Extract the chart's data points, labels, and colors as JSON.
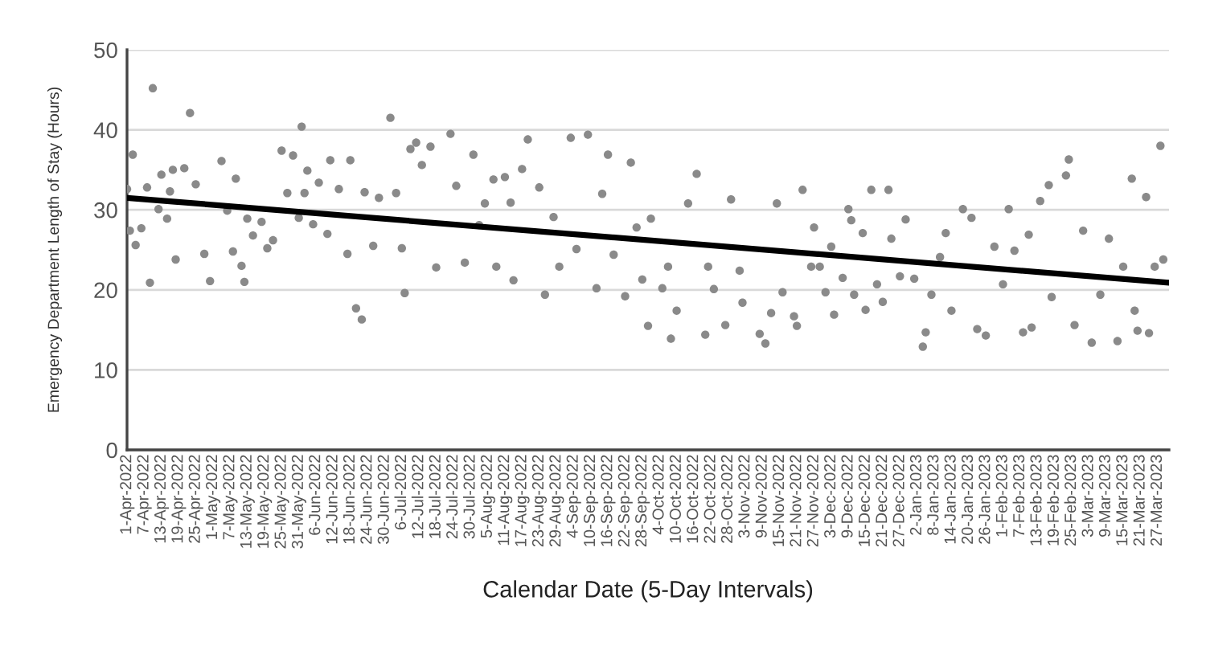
{
  "chart_data": {
    "type": "scatter",
    "xlabel": "Calendar Date (5-Day Intervals)",
    "ylabel": "Emergency Department Length of Stay (Hours)",
    "xlim": [
      "2022-04-01",
      "2023-03-31"
    ],
    "ylim": [
      0,
      50
    ],
    "yticks": [
      0,
      10,
      20,
      30,
      40,
      50
    ],
    "xticks": [
      {
        "value": "2022-04-01",
        "label": "1-Apr-2022"
      },
      {
        "value": "2022-04-07",
        "label": "7-Apr-2022"
      },
      {
        "value": "2022-04-13",
        "label": "13-Apr-2022"
      },
      {
        "value": "2022-04-19",
        "label": "19-Apr-2022"
      },
      {
        "value": "2022-04-25",
        "label": "25-Apr-2022"
      },
      {
        "value": "2022-05-01",
        "label": "1-May-2022"
      },
      {
        "value": "2022-05-07",
        "label": "7-May-2022"
      },
      {
        "value": "2022-05-13",
        "label": "13-May-2022"
      },
      {
        "value": "2022-05-19",
        "label": "19-May-2022"
      },
      {
        "value": "2022-05-25",
        "label": "25-May-2022"
      },
      {
        "value": "2022-05-31",
        "label": "31-May-2022"
      },
      {
        "value": "2022-06-06",
        "label": "6-Jun-2022"
      },
      {
        "value": "2022-06-12",
        "label": "12-Jun-2022"
      },
      {
        "value": "2022-06-18",
        "label": "18-Jun-2022"
      },
      {
        "value": "2022-06-24",
        "label": "24-Jun-2022"
      },
      {
        "value": "2022-06-30",
        "label": "30-Jun-2022"
      },
      {
        "value": "2022-07-06",
        "label": "6-Jul-2022"
      },
      {
        "value": "2022-07-12",
        "label": "12-Jul-2022"
      },
      {
        "value": "2022-07-18",
        "label": "18-Jul-2022"
      },
      {
        "value": "2022-07-24",
        "label": "24-Jul-2022"
      },
      {
        "value": "2022-07-30",
        "label": "30-Jul-2022"
      },
      {
        "value": "2022-08-05",
        "label": "5-Aug-2022"
      },
      {
        "value": "2022-08-11",
        "label": "11-Aug-2022"
      },
      {
        "value": "2022-08-17",
        "label": "17-Aug-2022"
      },
      {
        "value": "2022-08-23",
        "label": "23-Aug-2022"
      },
      {
        "value": "2022-08-29",
        "label": "29-Aug-2022"
      },
      {
        "value": "2022-09-04",
        "label": "4-Sep-2022"
      },
      {
        "value": "2022-09-10",
        "label": "10-Sep-2022"
      },
      {
        "value": "2022-09-16",
        "label": "16-Sep-2022"
      },
      {
        "value": "2022-09-22",
        "label": "22-Sep-2022"
      },
      {
        "value": "2022-09-28",
        "label": "28-Sep-2022"
      },
      {
        "value": "2022-10-04",
        "label": "4-Oct-2022"
      },
      {
        "value": "2022-10-10",
        "label": "10-Oct-2022"
      },
      {
        "value": "2022-10-16",
        "label": "16-Oct-2022"
      },
      {
        "value": "2022-10-22",
        "label": "22-Oct-2022"
      },
      {
        "value": "2022-10-28",
        "label": "28-Oct-2022"
      },
      {
        "value": "2022-11-03",
        "label": "3-Nov-2022"
      },
      {
        "value": "2022-11-09",
        "label": "9-Nov-2022"
      },
      {
        "value": "2022-11-15",
        "label": "15-Nov-2022"
      },
      {
        "value": "2022-11-21",
        "label": "21-Nov-2022"
      },
      {
        "value": "2022-11-27",
        "label": "27-Nov-2022"
      },
      {
        "value": "2022-12-03",
        "label": "3-Dec-2022"
      },
      {
        "value": "2022-12-09",
        "label": "9-Dec-2022"
      },
      {
        "value": "2022-12-15",
        "label": "15-Dec-2022"
      },
      {
        "value": "2022-12-21",
        "label": "21-Dec-2022"
      },
      {
        "value": "2022-12-27",
        "label": "27-Dec-2022"
      },
      {
        "value": "2023-01-02",
        "label": "2-Jan-2023"
      },
      {
        "value": "2023-01-08",
        "label": "8-Jan-2023"
      },
      {
        "value": "2023-01-14",
        "label": "14-Jan-2023"
      },
      {
        "value": "2023-01-20",
        "label": "20-Jan-2023"
      },
      {
        "value": "2023-01-26",
        "label": "26-Jan-2023"
      },
      {
        "value": "2023-02-01",
        "label": "1-Feb-2023"
      },
      {
        "value": "2023-02-07",
        "label": "7-Feb-2023"
      },
      {
        "value": "2023-02-13",
        "label": "13-Feb-2023"
      },
      {
        "value": "2023-02-19",
        "label": "19-Feb-2023"
      },
      {
        "value": "2023-02-25",
        "label": "25-Feb-2023"
      },
      {
        "value": "2023-03-03",
        "label": "3-Mar-2023"
      },
      {
        "value": "2023-03-09",
        "label": "9-Mar-2023"
      },
      {
        "value": "2023-03-15",
        "label": "15-Mar-2023"
      },
      {
        "value": "2023-03-21",
        "label": "21-Mar-2023"
      },
      {
        "value": "2023-03-27",
        "label": "27-Mar-2023"
      }
    ],
    "grid": "y",
    "series": [
      {
        "marker": "circle",
        "color": "#8a8a8a",
        "x": [
          "2022-04-01",
          "2022-04-02",
          "2022-04-03",
          "2022-04-04",
          "2022-04-06",
          "2022-04-08",
          "2022-04-09",
          "2022-04-10",
          "2022-04-12",
          "2022-04-13",
          "2022-04-15",
          "2022-04-16",
          "2022-04-17",
          "2022-04-18",
          "2022-04-21",
          "2022-04-23",
          "2022-04-25",
          "2022-04-28",
          "2022-04-30",
          "2022-05-04",
          "2022-05-06",
          "2022-05-08",
          "2022-05-09",
          "2022-05-11",
          "2022-05-12",
          "2022-05-13",
          "2022-05-15",
          "2022-05-18",
          "2022-05-20",
          "2022-05-22",
          "2022-05-25",
          "2022-05-27",
          "2022-05-29",
          "2022-05-31",
          "2022-06-01",
          "2022-06-02",
          "2022-06-03",
          "2022-06-05",
          "2022-06-07",
          "2022-06-10",
          "2022-06-11",
          "2022-06-14",
          "2022-06-17",
          "2022-06-18",
          "2022-06-20",
          "2022-06-22",
          "2022-06-23",
          "2022-06-26",
          "2022-06-28",
          "2022-07-02",
          "2022-07-04",
          "2022-07-06",
          "2022-07-07",
          "2022-07-09",
          "2022-07-11",
          "2022-07-13",
          "2022-07-16",
          "2022-07-18",
          "2022-07-23",
          "2022-07-25",
          "2022-07-28",
          "2022-07-31",
          "2022-08-02",
          "2022-08-04",
          "2022-08-07",
          "2022-08-08",
          "2022-08-11",
          "2022-08-13",
          "2022-08-14",
          "2022-08-17",
          "2022-08-19",
          "2022-08-23",
          "2022-08-25",
          "2022-08-28",
          "2022-08-30",
          "2022-09-03",
          "2022-09-05",
          "2022-09-09",
          "2022-09-12",
          "2022-09-14",
          "2022-09-16",
          "2022-09-18",
          "2022-09-22",
          "2022-09-24",
          "2022-09-26",
          "2022-09-28",
          "2022-09-30",
          "2022-10-01",
          "2022-10-05",
          "2022-10-07",
          "2022-10-08",
          "2022-10-10",
          "2022-10-14",
          "2022-10-17",
          "2022-10-20",
          "2022-10-21",
          "2022-10-23",
          "2022-10-27",
          "2022-10-29",
          "2022-11-01",
          "2022-11-02",
          "2022-11-08",
          "2022-11-10",
          "2022-11-12",
          "2022-11-14",
          "2022-11-16",
          "2022-11-20",
          "2022-11-21",
          "2022-11-23",
          "2022-11-26",
          "2022-11-27",
          "2022-11-29",
          "2022-12-01",
          "2022-12-03",
          "2022-12-04",
          "2022-12-07",
          "2022-12-09",
          "2022-12-10",
          "2022-12-11",
          "2022-12-14",
          "2022-12-15",
          "2022-12-17",
          "2022-12-19",
          "2022-12-21",
          "2022-12-23",
          "2022-12-24",
          "2022-12-27",
          "2022-12-29",
          "2023-01-01",
          "2023-01-04",
          "2023-01-05",
          "2023-01-07",
          "2023-01-10",
          "2023-01-12",
          "2023-01-14",
          "2023-01-18",
          "2023-01-21",
          "2023-01-23",
          "2023-01-26",
          "2023-01-29",
          "2023-02-01",
          "2023-02-03",
          "2023-02-05",
          "2023-02-08",
          "2023-02-10",
          "2023-02-11",
          "2023-02-14",
          "2023-02-17",
          "2023-02-18",
          "2023-02-23",
          "2023-02-24",
          "2023-02-26",
          "2023-03-01",
          "2023-03-04",
          "2023-03-07",
          "2023-03-10",
          "2023-03-13",
          "2023-03-15",
          "2023-03-18",
          "2023-03-19",
          "2023-03-20",
          "2023-03-23",
          "2023-03-24",
          "2023-03-26",
          "2023-03-28",
          "2023-03-29"
        ],
        "values": [
          32.6,
          27.4,
          36.9,
          25.6,
          27.7,
          32.8,
          20.9,
          45.2,
          30.1,
          34.4,
          28.9,
          32.3,
          35.0,
          23.8,
          35.2,
          42.1,
          33.2,
          24.5,
          21.1,
          36.1,
          29.9,
          24.8,
          33.9,
          23.0,
          21.0,
          28.9,
          26.8,
          28.5,
          25.2,
          26.2,
          37.4,
          32.1,
          36.8,
          29.0,
          40.4,
          32.1,
          34.9,
          28.2,
          33.4,
          27.0,
          36.2,
          32.6,
          24.5,
          36.2,
          17.7,
          16.3,
          32.2,
          25.5,
          31.5,
          41.5,
          32.1,
          25.2,
          19.6,
          37.6,
          38.4,
          35.6,
          37.9,
          22.8,
          39.5,
          33.0,
          23.4,
          36.9,
          28.1,
          30.8,
          33.8,
          22.9,
          34.1,
          30.9,
          21.2,
          35.1,
          38.8,
          32.8,
          19.4,
          29.1,
          22.9,
          39.0,
          25.1,
          39.4,
          20.2,
          32.0,
          36.9,
          24.4,
          19.2,
          35.9,
          27.8,
          21.3,
          15.5,
          28.9,
          20.2,
          22.9,
          13.9,
          17.4,
          30.8,
          34.5,
          14.4,
          22.9,
          20.1,
          15.6,
          31.3,
          22.4,
          18.4,
          14.5,
          13.3,
          17.1,
          30.8,
          19.7,
          16.7,
          15.5,
          32.5,
          22.9,
          27.8,
          22.9,
          19.7,
          25.4,
          16.9,
          21.5,
          30.1,
          28.7,
          19.4,
          27.1,
          17.5,
          32.5,
          20.7,
          18.5,
          32.5,
          26.4,
          21.7,
          28.8,
          21.4,
          12.9,
          14.7,
          19.4,
          24.1,
          27.1,
          17.4,
          30.1,
          29.0,
          15.1,
          14.3,
          25.4,
          20.7,
          30.1,
          24.9,
          14.7,
          26.9,
          15.3,
          31.1,
          33.1,
          19.1,
          34.3,
          36.3,
          15.6,
          27.4,
          13.4,
          19.4,
          26.4,
          13.6,
          22.9,
          33.9,
          17.4,
          14.9,
          31.6,
          14.6,
          22.9,
          38.0,
          23.8
        ]
      },
      {
        "type": "line",
        "marker": "none",
        "color": "#000000",
        "x": [
          "2022-04-01",
          "2023-03-31"
        ],
        "values": [
          31.5,
          20.9
        ]
      }
    ]
  }
}
